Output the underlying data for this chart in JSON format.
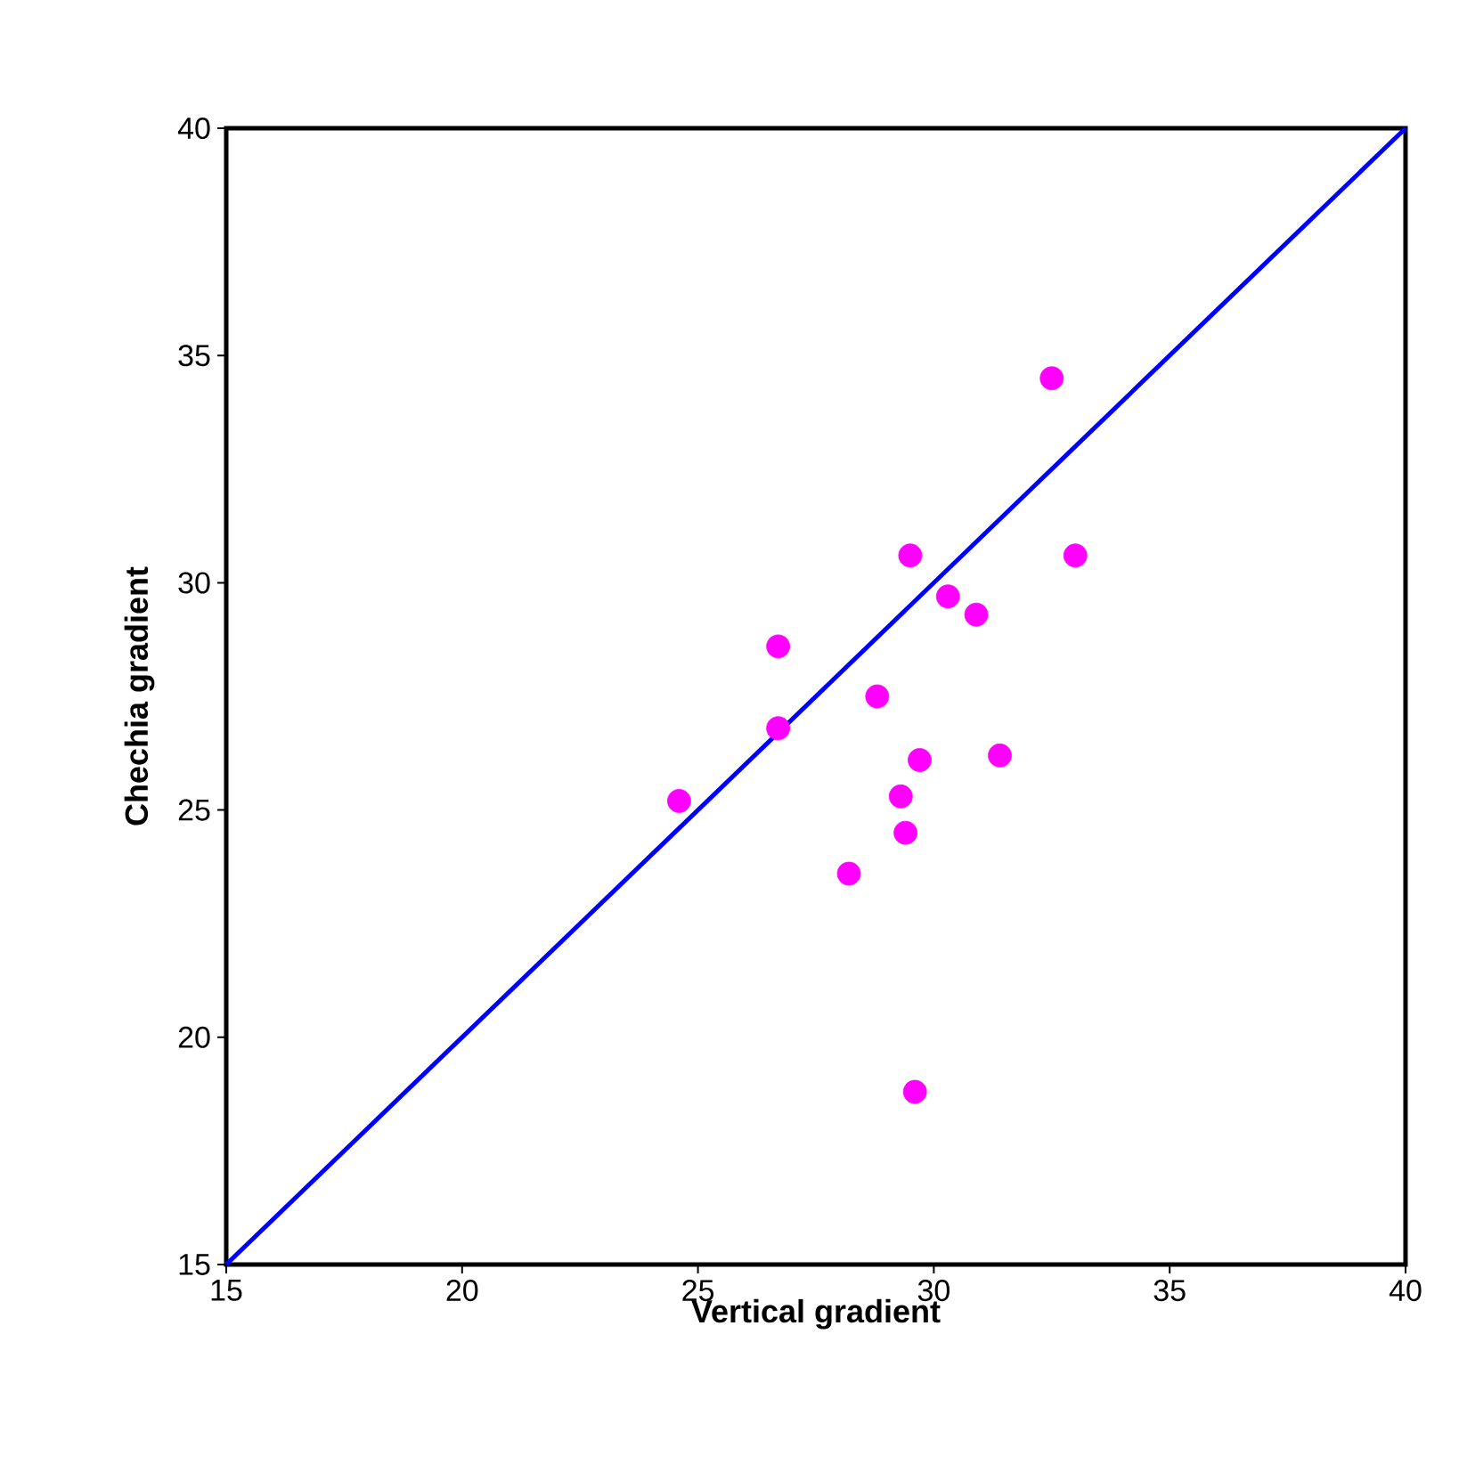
{
  "chart_data": {
    "type": "scatter",
    "xlabel": "Vertical gradient",
    "ylabel": "Chechia gradient",
    "xlim": [
      15,
      40
    ],
    "ylim": [
      15,
      40
    ],
    "xticks": [
      15,
      20,
      25,
      30,
      35,
      40
    ],
    "yticks": [
      15,
      20,
      25,
      30,
      35,
      40
    ],
    "grid": false,
    "series": [
      {
        "type": "line",
        "color": "#0000ff",
        "x": [
          15,
          40
        ],
        "values": [
          15,
          40
        ],
        "marker": "none",
        "line_style": "solid"
      },
      {
        "color": "#ff00ff",
        "x": [
          32.5,
          29.5,
          33.0,
          30.3,
          30.9,
          26.7,
          28.8,
          26.7,
          29.7,
          31.4,
          24.6,
          29.3,
          29.4,
          28.2,
          29.6
        ],
        "values": [
          34.5,
          30.6,
          30.6,
          29.7,
          29.3,
          28.6,
          27.5,
          26.8,
          26.1,
          26.2,
          25.2,
          25.3,
          24.5,
          23.6,
          18.8
        ],
        "marker": "circle"
      }
    ]
  }
}
